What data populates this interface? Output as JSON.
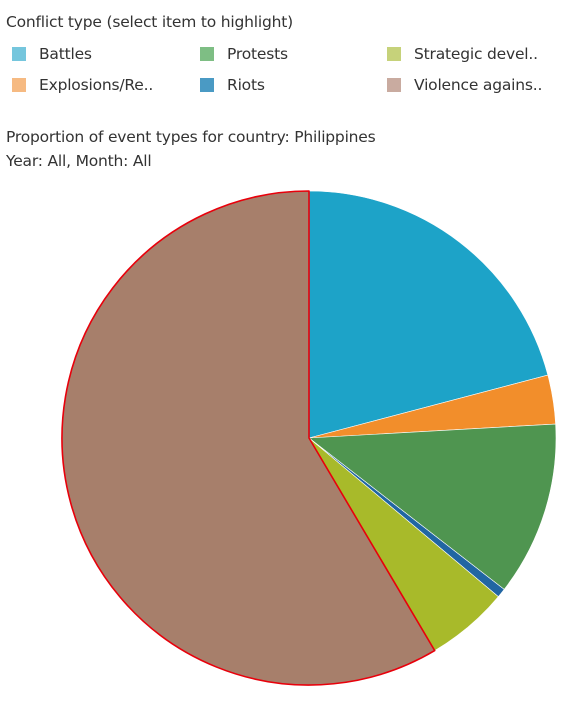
{
  "legend": {
    "title": "Conflict type (select item to highlight)",
    "items": [
      {
        "label": "Battles",
        "color": "#75C6DD"
      },
      {
        "label": "Protests",
        "color": "#7EBE84"
      },
      {
        "label": "Strategic devel..",
        "color": "#C6D27A"
      },
      {
        "label": "Explosions/Re..",
        "color": "#F6BA82"
      },
      {
        "label": "Riots",
        "color": "#4A9AC4"
      },
      {
        "label": "Violence agains..",
        "color": "#C9ABA0"
      }
    ]
  },
  "chart_title": {
    "line1": "Proportion of event types for country: Philippines",
    "line2": "Year: All, Month: All"
  },
  "chart_data": {
    "type": "pie",
    "title": "Proportion of event types for country: Philippines",
    "subtitle": "Year: All, Month: All",
    "highlighted": "Violence against civilians",
    "slices": [
      {
        "name": "Battles",
        "value": 20.9,
        "color": "#1DA3C8"
      },
      {
        "name": "Explosions/Remote violence",
        "value": 3.2,
        "color": "#F28E2B"
      },
      {
        "name": "Protests",
        "value": 11.4,
        "color": "#4F9550"
      },
      {
        "name": "Riots",
        "value": 0.6,
        "color": "#2166A2"
      },
      {
        "name": "Strategic developments",
        "value": 5.4,
        "color": "#A8BA2A"
      },
      {
        "name": "Violence against civilians",
        "value": 58.5,
        "color": "#A77F6B"
      }
    ]
  }
}
